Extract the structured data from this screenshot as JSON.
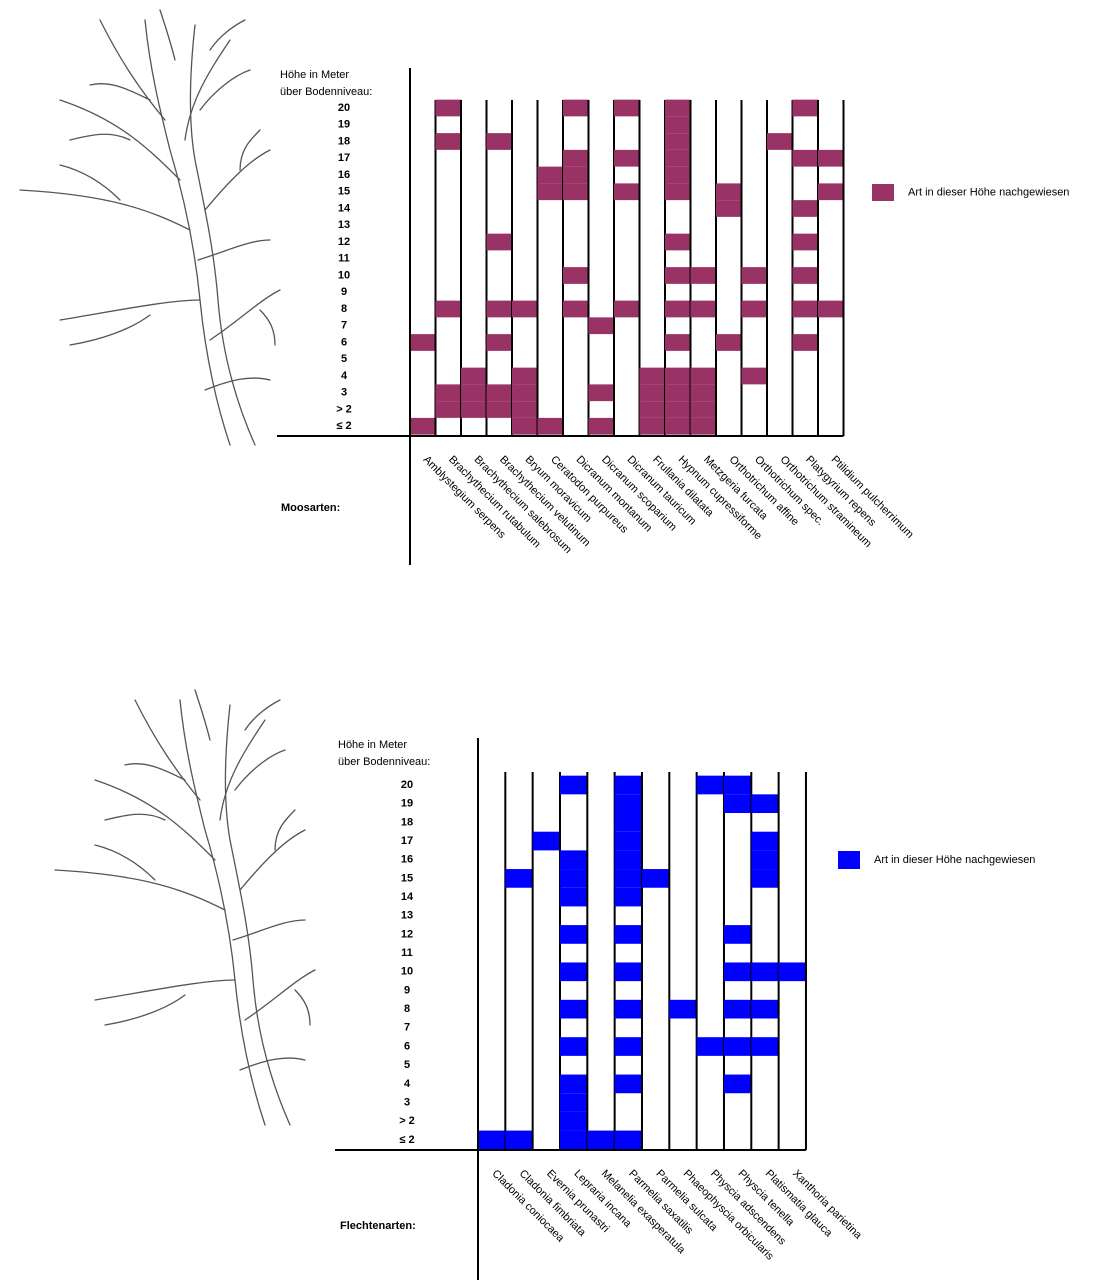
{
  "chart_data": [
    {
      "type": "presence",
      "y_label": [
        "Höhe in Meter",
        "über Bodenniveau:"
      ],
      "x_title": "Moosarten:",
      "legend": "Art in dieser Höhe nachgewiesen",
      "color": "#993366",
      "rows": [
        "20",
        "19",
        "18",
        "17",
        "16",
        "15",
        "14",
        "13",
        "12",
        "11",
        "10",
        "9",
        "8",
        "7",
        "6",
        "5",
        "4",
        "3",
        "> 2",
        "≤ 2"
      ],
      "series": [
        {
          "name": "Amblystegium serpens",
          "present": [
            14,
            19
          ]
        },
        {
          "name": "Brachythecium rutabulum",
          "present": [
            0,
            2,
            12,
            17,
            18
          ]
        },
        {
          "name": "Brachythecium salebrosum",
          "present": [
            16,
            17,
            18
          ]
        },
        {
          "name": "Brachythecium velutinum",
          "present": [
            2,
            8,
            12,
            14,
            17,
            18
          ]
        },
        {
          "name": "Bryum moravicum",
          "present": [
            12,
            16,
            17,
            18,
            19
          ]
        },
        {
          "name": "Ceratodon purpureus",
          "present": [
            4,
            5,
            19
          ]
        },
        {
          "name": "Dicranum montanum",
          "present": [
            0,
            3,
            4,
            5,
            10,
            12
          ]
        },
        {
          "name": "Dicranum scoparium",
          "present": [
            13,
            17,
            19
          ]
        },
        {
          "name": "Dicranum tauricum",
          "present": [
            0,
            3,
            5,
            12
          ]
        },
        {
          "name": "Frullania dilatata",
          "present": [
            16,
            17,
            18,
            19
          ]
        },
        {
          "name": "Hypnum cupressiforme",
          "present": [
            0,
            1,
            2,
            3,
            4,
            5,
            8,
            10,
            12,
            14,
            16,
            17,
            18,
            19
          ]
        },
        {
          "name": "Metzgeria furcata",
          "present": [
            10,
            12,
            16,
            17,
            18,
            19
          ]
        },
        {
          "name": "Orthotrichum affine",
          "present": [
            5,
            6,
            14
          ]
        },
        {
          "name": "Orthotrichum spec.",
          "present": [
            10,
            12,
            16
          ]
        },
        {
          "name": "Orthotrichum stramineum",
          "present": [
            2
          ]
        },
        {
          "name": "Platygyrium repens",
          "present": [
            0,
            3,
            6,
            8,
            10,
            12,
            14
          ]
        },
        {
          "name": "Ptilidium pulcherrimum",
          "present": [
            3,
            5,
            12
          ]
        }
      ]
    },
    {
      "type": "presence",
      "y_label": [
        "Höhe in Meter",
        "über Bodenniveau:"
      ],
      "x_title": "Flechtenarten:",
      "legend": "Art in dieser Höhe nachgewiesen",
      "color": "#0000ff",
      "rows": [
        "20",
        "19",
        "18",
        "17",
        "16",
        "15",
        "14",
        "13",
        "12",
        "11",
        "10",
        "9",
        "8",
        "7",
        "6",
        "5",
        "4",
        "3",
        "> 2",
        "≤ 2"
      ],
      "series": [
        {
          "name": "Cladonia coniocaea",
          "present": [
            19
          ]
        },
        {
          "name": "Cladonia fimbriata",
          "present": [
            5,
            19
          ]
        },
        {
          "name": "Evernia prunastri",
          "present": [
            3
          ]
        },
        {
          "name": "Lepraria incana",
          "present": [
            0,
            4,
            5,
            6,
            8,
            10,
            12,
            14,
            16,
            17,
            18,
            19
          ]
        },
        {
          "name": "Melanelia exasperatula",
          "present": [
            19
          ]
        },
        {
          "name": "Parmelia saxatilis",
          "present": [
            0,
            1,
            2,
            3,
            4,
            5,
            6,
            8,
            10,
            12,
            14,
            16,
            19
          ]
        },
        {
          "name": "Parmelia sulcata",
          "present": [
            5
          ]
        },
        {
          "name": "Phaeophyscia orbicularis",
          "present": [
            12
          ]
        },
        {
          "name": "Physcia adscendens",
          "present": [
            0,
            14
          ]
        },
        {
          "name": "Physcia tenella",
          "present": [
            0,
            1,
            8,
            10,
            12,
            14,
            16
          ]
        },
        {
          "name": "Platismatia glauca",
          "present": [
            1,
            3,
            4,
            5,
            10,
            12,
            14
          ]
        },
        {
          "name": "Xanthoria parietina",
          "present": [
            10
          ]
        }
      ]
    }
  ]
}
